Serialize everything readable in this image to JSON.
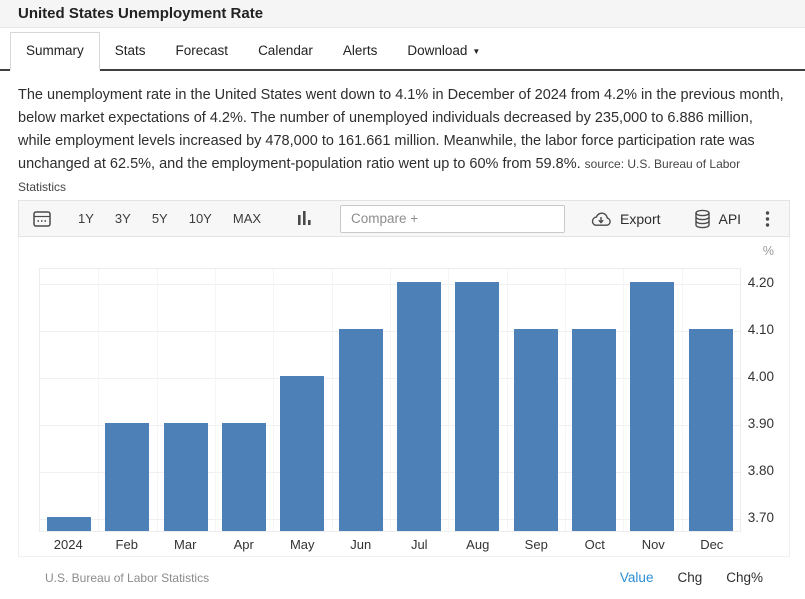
{
  "header": {
    "title": "United States Unemployment Rate"
  },
  "tabs": [
    {
      "label": "Summary",
      "active": true
    },
    {
      "label": "Stats"
    },
    {
      "label": "Forecast"
    },
    {
      "label": "Calendar"
    },
    {
      "label": "Alerts"
    },
    {
      "label": "Download",
      "caret": "▼"
    }
  ],
  "summary": {
    "text": "The unemployment rate in the United States went down to 4.1% in December of 2024 from 4.2% in the previous month, below market expectations of 4.2%. The number of unemployed individuals decreased by 235,000 to 6.886 million, while employment levels increased by 478,000 to 161.661 million. Meanwhile, the labor force participation rate was unchanged at 62.5%, and the employment-population ratio went up to 60% from 59.8%.",
    "source_label": "source: U.S. Bureau of Labor Statistics"
  },
  "toolbar": {
    "ranges": [
      "1Y",
      "3Y",
      "5Y",
      "10Y",
      "MAX"
    ],
    "compare_placeholder": "Compare +",
    "export_label": "Export",
    "api_label": "API",
    "icons": [
      "calendar-icon",
      "bar-chart-icon",
      "cloud-download-icon",
      "database-icon",
      "kebab-menu-icon"
    ]
  },
  "chart_data": {
    "type": "bar",
    "title": "United States Unemployment Rate",
    "ylabel": "%",
    "categories": [
      "2024",
      "Feb",
      "Mar",
      "Apr",
      "May",
      "Jun",
      "Jul",
      "Aug",
      "Sep",
      "Oct",
      "Nov",
      "Dec"
    ],
    "values": [
      3.7,
      3.9,
      3.9,
      3.9,
      4.0,
      4.1,
      4.2,
      4.2,
      4.1,
      4.1,
      4.2,
      4.1
    ],
    "yticks": [
      "4.20",
      "4.10",
      "4.00",
      "3.90",
      "3.80",
      "3.70"
    ],
    "ylim": [
      3.67,
      4.232
    ],
    "bar_color": "#4c80b6",
    "grid": true,
    "legend_position": "none"
  },
  "chart_footer": {
    "attribution": "U.S. Bureau of Labor Statistics",
    "modes": [
      {
        "label": "Value",
        "active": true
      },
      {
        "label": "Chg"
      },
      {
        "label": "Chg%"
      }
    ]
  },
  "colors": {
    "bar": "#4c80b6",
    "active_mode": "#2b8fd6",
    "tab_border_dark": "#3f3f3f"
  }
}
